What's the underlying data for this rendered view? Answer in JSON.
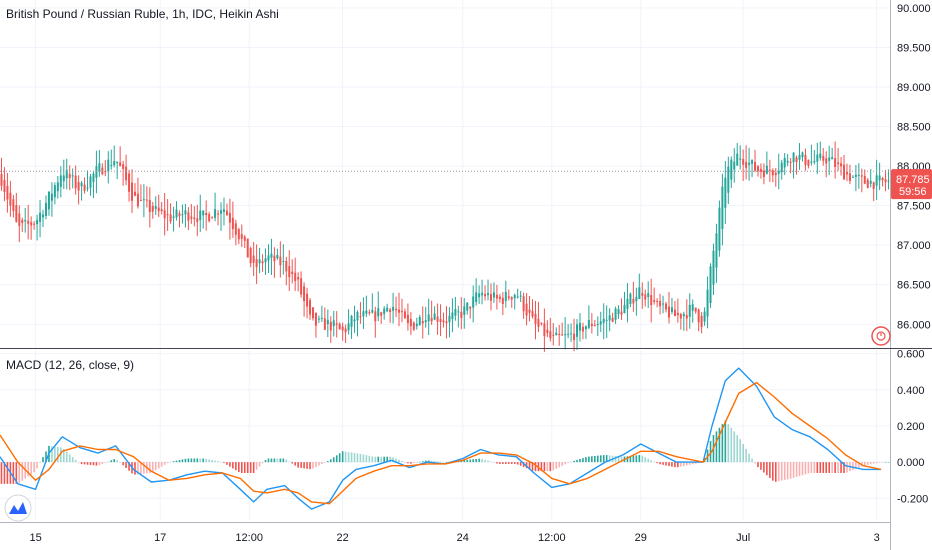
{
  "legend": {
    "main": "British Pound / Russian Ruble, 1h, IDC, Heikin Ashi",
    "macd": "MACD (12, 26, close, 9)"
  },
  "colors": {
    "up": "#26a69a",
    "down": "#ef5350",
    "macd_line": "#2196f3",
    "signal_line": "#ff6d00",
    "hist_up": "#26a69a",
    "hist_down": "#ef5350",
    "grid": "#f0f3fa",
    "axis_text": "#131722",
    "price_tag": "#ef5350"
  },
  "current_price": {
    "value": "87.785",
    "countdown": "59:56"
  },
  "chart_data": [
    {
      "type": "candlestick",
      "title": "British Pound / Russian Ruble, 1h, IDC, Heikin Ashi",
      "ylim": [
        85.7,
        90.1
      ],
      "y_ticks": [
        86.0,
        86.5,
        87.0,
        87.5,
        88.0,
        88.5,
        89.0,
        89.5,
        90.0
      ],
      "y_tick_labels": [
        "86.000",
        "86.500",
        "87.000",
        "87.500",
        "88.000",
        "88.500",
        "89.000",
        "89.500",
        "90.000"
      ],
      "x_tick_labels": [
        "15",
        "17",
        "12:00",
        "22",
        "24",
        "12:00",
        "29",
        "Jul",
        "3"
      ],
      "x_tick_positions": [
        0.04,
        0.18,
        0.28,
        0.385,
        0.52,
        0.62,
        0.72,
        0.835,
        0.985
      ],
      "last_price": 87.785,
      "path": [
        [
          0.0,
          87.9
        ],
        [
          0.02,
          87.2
        ],
        [
          0.04,
          87.3
        ],
        [
          0.055,
          87.6
        ],
        [
          0.07,
          87.95
        ],
        [
          0.09,
          87.7
        ],
        [
          0.11,
          87.95
        ],
        [
          0.13,
          88.1
        ],
        [
          0.15,
          87.6
        ],
        [
          0.17,
          87.45
        ],
        [
          0.19,
          87.35
        ],
        [
          0.21,
          87.4
        ],
        [
          0.23,
          87.35
        ],
        [
          0.25,
          87.5
        ],
        [
          0.27,
          87.1
        ],
        [
          0.285,
          86.7
        ],
        [
          0.3,
          86.85
        ],
        [
          0.32,
          86.75
        ],
        [
          0.335,
          86.5
        ],
        [
          0.35,
          86.0
        ],
        [
          0.37,
          86.0
        ],
        [
          0.385,
          85.9
        ],
        [
          0.4,
          86.1
        ],
        [
          0.42,
          86.1
        ],
        [
          0.44,
          86.25
        ],
        [
          0.46,
          85.95
        ],
        [
          0.48,
          86.15
        ],
        [
          0.5,
          86.05
        ],
        [
          0.52,
          86.15
        ],
        [
          0.54,
          86.4
        ],
        [
          0.56,
          86.3
        ],
        [
          0.58,
          86.4
        ],
        [
          0.6,
          86.0
        ],
        [
          0.62,
          85.8
        ],
        [
          0.64,
          85.85
        ],
        [
          0.66,
          86.0
        ],
        [
          0.68,
          86.05
        ],
        [
          0.7,
          86.2
        ],
        [
          0.72,
          86.45
        ],
        [
          0.74,
          86.2
        ],
        [
          0.76,
          86.1
        ],
        [
          0.78,
          86.2
        ],
        [
          0.79,
          86.0
        ],
        [
          0.8,
          86.8
        ],
        [
          0.815,
          87.9
        ],
        [
          0.83,
          88.15
        ],
        [
          0.85,
          87.95
        ],
        [
          0.87,
          87.95
        ],
        [
          0.89,
          88.15
        ],
        [
          0.91,
          88.05
        ],
        [
          0.93,
          88.1
        ],
        [
          0.95,
          87.9
        ],
        [
          0.97,
          87.8
        ],
        [
          0.99,
          87.8
        ]
      ]
    },
    {
      "type": "line",
      "title": "MACD (12, 26, close, 9)",
      "ylim": [
        -0.32,
        0.62
      ],
      "y_ticks": [
        -0.2,
        0.0,
        0.2,
        0.4,
        0.6
      ],
      "y_tick_labels": [
        "-0.200",
        "0.000",
        "0.200",
        "0.400",
        "0.600"
      ],
      "series": [
        {
          "name": "MACD",
          "points": [
            [
              0.0,
              0.03
            ],
            [
              0.02,
              -0.12
            ],
            [
              0.04,
              -0.15
            ],
            [
              0.055,
              0.05
            ],
            [
              0.07,
              0.14
            ],
            [
              0.09,
              0.08
            ],
            [
              0.11,
              0.05
            ],
            [
              0.13,
              0.09
            ],
            [
              0.15,
              -0.04
            ],
            [
              0.17,
              -0.11
            ],
            [
              0.19,
              -0.1
            ],
            [
              0.21,
              -0.07
            ],
            [
              0.23,
              -0.05
            ],
            [
              0.25,
              -0.06
            ],
            [
              0.27,
              -0.15
            ],
            [
              0.285,
              -0.22
            ],
            [
              0.3,
              -0.15
            ],
            [
              0.32,
              -0.13
            ],
            [
              0.335,
              -0.2
            ],
            [
              0.35,
              -0.26
            ],
            [
              0.37,
              -0.22
            ],
            [
              0.385,
              -0.1
            ],
            [
              0.4,
              -0.04
            ],
            [
              0.42,
              -0.02
            ],
            [
              0.44,
              0.01
            ],
            [
              0.46,
              -0.03
            ],
            [
              0.48,
              0.0
            ],
            [
              0.5,
              -0.01
            ],
            [
              0.52,
              0.02
            ],
            [
              0.54,
              0.07
            ],
            [
              0.56,
              0.04
            ],
            [
              0.58,
              0.03
            ],
            [
              0.6,
              -0.06
            ],
            [
              0.62,
              -0.14
            ],
            [
              0.64,
              -0.12
            ],
            [
              0.66,
              -0.06
            ],
            [
              0.68,
              0.0
            ],
            [
              0.7,
              0.04
            ],
            [
              0.72,
              0.1
            ],
            [
              0.74,
              0.05
            ],
            [
              0.76,
              0.0
            ],
            [
              0.78,
              0.0
            ],
            [
              0.79,
              0.0
            ],
            [
              0.8,
              0.2
            ],
            [
              0.815,
              0.45
            ],
            [
              0.83,
              0.52
            ],
            [
              0.85,
              0.42
            ],
            [
              0.87,
              0.25
            ],
            [
              0.89,
              0.18
            ],
            [
              0.91,
              0.14
            ],
            [
              0.93,
              0.07
            ],
            [
              0.95,
              -0.02
            ],
            [
              0.97,
              -0.04
            ],
            [
              0.99,
              -0.04
            ]
          ]
        },
        {
          "name": "Signal",
          "points": [
            [
              0.0,
              0.15
            ],
            [
              0.02,
              0.0
            ],
            [
              0.04,
              -0.1
            ],
            [
              0.055,
              -0.04
            ],
            [
              0.07,
              0.06
            ],
            [
              0.09,
              0.09
            ],
            [
              0.11,
              0.07
            ],
            [
              0.13,
              0.07
            ],
            [
              0.15,
              0.03
            ],
            [
              0.17,
              -0.05
            ],
            [
              0.19,
              -0.1
            ],
            [
              0.21,
              -0.09
            ],
            [
              0.23,
              -0.07
            ],
            [
              0.25,
              -0.06
            ],
            [
              0.27,
              -0.09
            ],
            [
              0.285,
              -0.16
            ],
            [
              0.3,
              -0.17
            ],
            [
              0.32,
              -0.15
            ],
            [
              0.335,
              -0.17
            ],
            [
              0.35,
              -0.22
            ],
            [
              0.37,
              -0.23
            ],
            [
              0.385,
              -0.16
            ],
            [
              0.4,
              -0.09
            ],
            [
              0.42,
              -0.05
            ],
            [
              0.44,
              -0.02
            ],
            [
              0.46,
              -0.02
            ],
            [
              0.48,
              -0.01
            ],
            [
              0.5,
              -0.01
            ],
            [
              0.52,
              0.01
            ],
            [
              0.54,
              0.05
            ],
            [
              0.56,
              0.05
            ],
            [
              0.58,
              0.04
            ],
            [
              0.6,
              -0.01
            ],
            [
              0.62,
              -0.09
            ],
            [
              0.64,
              -0.12
            ],
            [
              0.66,
              -0.09
            ],
            [
              0.68,
              -0.04
            ],
            [
              0.7,
              0.01
            ],
            [
              0.72,
              0.06
            ],
            [
              0.74,
              0.06
            ],
            [
              0.76,
              0.03
            ],
            [
              0.78,
              0.01
            ],
            [
              0.79,
              0.0
            ],
            [
              0.8,
              0.06
            ],
            [
              0.815,
              0.22
            ],
            [
              0.83,
              0.38
            ],
            [
              0.85,
              0.44
            ],
            [
              0.87,
              0.36
            ],
            [
              0.89,
              0.27
            ],
            [
              0.91,
              0.2
            ],
            [
              0.93,
              0.13
            ],
            [
              0.95,
              0.04
            ],
            [
              0.97,
              -0.02
            ],
            [
              0.99,
              -0.04
            ]
          ]
        }
      ]
    }
  ]
}
